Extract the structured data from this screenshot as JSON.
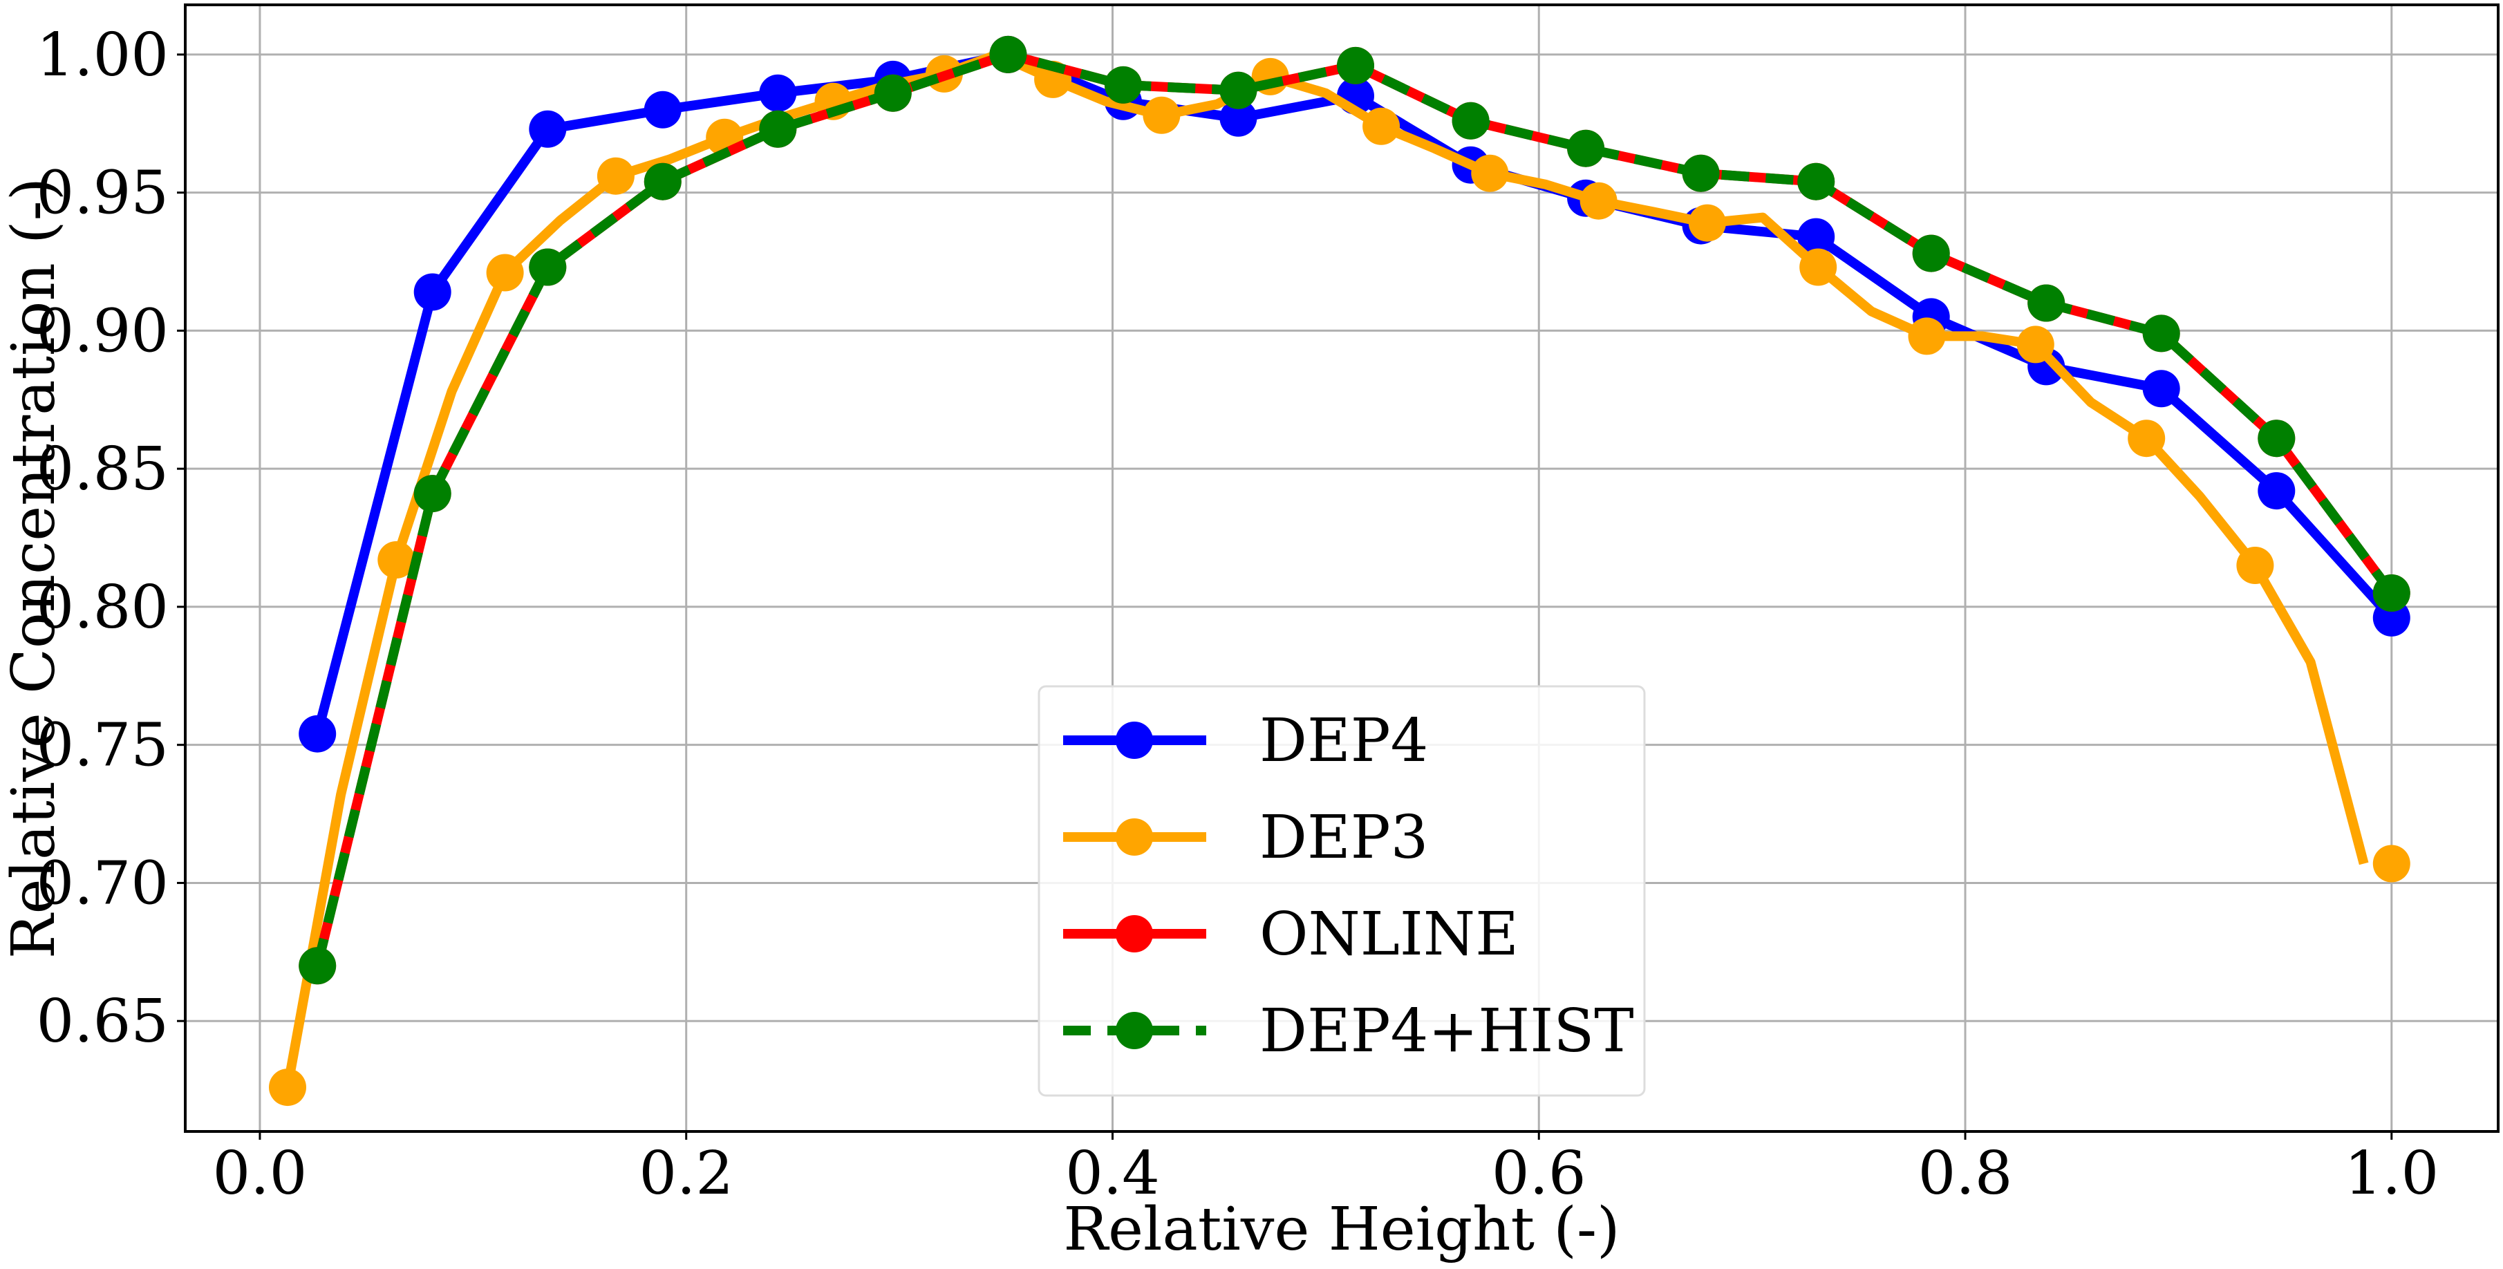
{
  "chart_data": {
    "type": "line",
    "xlabel": "Relative Height (-)",
    "ylabel": "Relative Concentration (-)",
    "xlim": [
      -0.035,
      1.05
    ],
    "ylim": [
      0.61,
      1.018
    ],
    "x_ticks": [
      "0.0",
      "0.2",
      "0.4",
      "0.6",
      "0.8",
      "1.0"
    ],
    "y_ticks": [
      "0.65",
      "0.70",
      "0.75",
      "0.80",
      "0.85",
      "0.90",
      "0.95",
      "1.00"
    ],
    "grid": true,
    "legend_position": "lower-center",
    "series": [
      {
        "name": "DEP4",
        "color": "#0000ff",
        "line_style": "solid",
        "x": [
          0.027,
          0.081,
          0.135,
          0.189,
          0.243,
          0.297,
          0.351,
          0.405,
          0.459,
          0.514,
          0.568,
          0.622,
          0.676,
          0.73,
          0.784,
          0.838,
          0.892,
          0.946,
          1.0
        ],
        "y": [
          0.754,
          0.914,
          0.973,
          0.98,
          0.986,
          0.991,
          1.0,
          0.983,
          0.977,
          0.985,
          0.96,
          0.948,
          0.938,
          0.934,
          0.905,
          0.887,
          0.879,
          0.842,
          0.796
        ]
      },
      {
        "name": "DEP3",
        "color": "#ffa500",
        "line_style": "solid",
        "x": [
          0.013,
          0.038,
          0.064,
          0.09,
          0.115,
          0.141,
          0.167,
          0.192,
          0.218,
          0.244,
          0.269,
          0.295,
          0.321,
          0.346,
          0.372,
          0.397,
          0.423,
          0.449,
          0.474,
          0.5,
          0.526,
          0.551,
          0.577,
          0.603,
          0.628,
          0.654,
          0.679,
          0.705,
          0.731,
          0.756,
          0.782,
          0.808,
          0.833,
          0.859,
          0.885,
          0.91,
          0.936,
          0.962,
          0.987
        ],
        "y": [
          0.626,
          0.732,
          0.817,
          0.878,
          0.921,
          0.94,
          0.956,
          0.962,
          0.97,
          0.977,
          0.983,
          0.989,
          0.993,
          1.0,
          0.991,
          0.983,
          0.978,
          0.982,
          0.992,
          0.986,
          0.974,
          0.966,
          0.957,
          0.953,
          0.947,
          0.943,
          0.939,
          0.941,
          0.923,
          0.907,
          0.898,
          0.898,
          0.895,
          0.874,
          0.861,
          0.84,
          0.815,
          0.78,
          0.707
        ],
        "markers_x": [
          0.013,
          0.064,
          0.115,
          0.167,
          0.218,
          0.269,
          0.321,
          0.372,
          0.423,
          0.474,
          0.526,
          0.577,
          0.628,
          0.679,
          0.731,
          0.782,
          0.833,
          0.885,
          0.936,
          1.0
        ],
        "markers_y": [
          0.626,
          0.817,
          0.921,
          0.956,
          0.97,
          0.983,
          0.993,
          0.991,
          0.978,
          0.992,
          0.974,
          0.957,
          0.947,
          0.939,
          0.923,
          0.898,
          0.895,
          0.861,
          0.815,
          0.707
        ]
      },
      {
        "name": "ONLINE",
        "color": "#ff0000",
        "line_style": "solid",
        "x": [
          0.027,
          0.081,
          0.135,
          0.189,
          0.243,
          0.297,
          0.351,
          0.405,
          0.459,
          0.514,
          0.568,
          0.622,
          0.676,
          0.73,
          0.784,
          0.838,
          0.892,
          0.946,
          1.0
        ],
        "y": [
          0.67,
          0.841,
          0.923,
          0.954,
          0.973,
          0.986,
          1.0,
          0.989,
          0.987,
          0.996,
          0.976,
          0.966,
          0.957,
          0.954,
          0.928,
          0.91,
          0.899,
          0.861,
          0.805
        ]
      },
      {
        "name": "DEP4+HIST",
        "color": "#008000",
        "line_style": "dashed",
        "x": [
          0.027,
          0.081,
          0.135,
          0.189,
          0.243,
          0.297,
          0.351,
          0.405,
          0.459,
          0.514,
          0.568,
          0.622,
          0.676,
          0.73,
          0.784,
          0.838,
          0.892,
          0.946,
          1.0
        ],
        "y": [
          0.67,
          0.841,
          0.923,
          0.954,
          0.973,
          0.986,
          1.0,
          0.989,
          0.987,
          0.996,
          0.976,
          0.966,
          0.957,
          0.954,
          0.928,
          0.91,
          0.899,
          0.861,
          0.805
        ]
      }
    ]
  }
}
